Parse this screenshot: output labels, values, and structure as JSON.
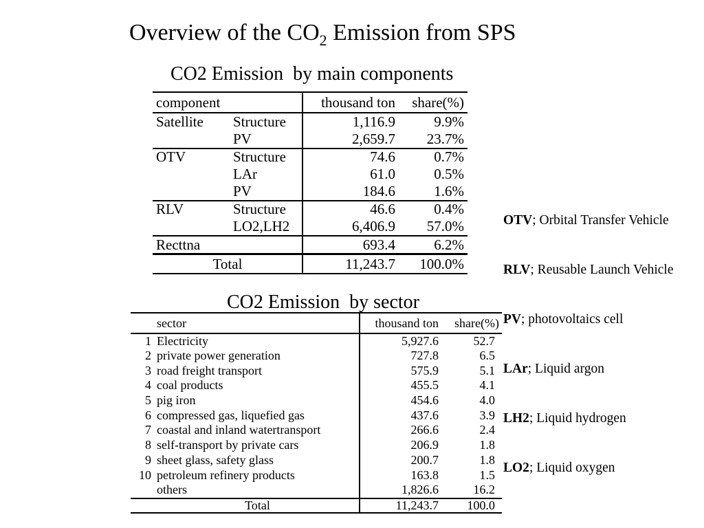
{
  "title": {
    "main": "Overview of the CO",
    "subscript": "2",
    "rest": " Emission from SPS"
  },
  "components_table": {
    "caption": "CO2 Emission  by main components",
    "header": {
      "component": "component",
      "amount": "thousand ton",
      "share": "share(%)"
    },
    "rows": [
      {
        "group": "Satellite",
        "item": "Structure",
        "amount": "1,116.9",
        "share": "9.9%"
      },
      {
        "item": "PV",
        "amount": "2,659.7",
        "share": "23.7%"
      },
      {
        "group": "OTV",
        "item": "Structure",
        "amount": "74.6",
        "share": "0.7%"
      },
      {
        "item": "LAr",
        "amount": "61.0",
        "share": "0.5%"
      },
      {
        "item": "PV",
        "amount": "184.6",
        "share": "1.6%"
      },
      {
        "group": "RLV",
        "item": "Structure",
        "amount": "46.6",
        "share": "0.4%"
      },
      {
        "item": "LO2,LH2",
        "amount": "6,406.9",
        "share": "57.0%"
      },
      {
        "group": "Recttna",
        "amount": "693.4",
        "share": "6.2%"
      }
    ],
    "total": {
      "label": "Total",
      "amount": "11,243.7",
      "share": "100.0%"
    }
  },
  "legend": [
    {
      "abbr": "OTV",
      "text": "; Orbital Transfer Vehicle"
    },
    {
      "abbr": "RLV",
      "text": "; Reusable Launch Vehicle"
    },
    {
      "abbr": "PV",
      "text": "; photovoltaics cell"
    },
    {
      "abbr": "LAr",
      "text": "; Liquid argon"
    },
    {
      "abbr": "LH2",
      "text": "; Liquid hydrogen"
    },
    {
      "abbr": "LO2",
      "text": "; Liquid oxygen"
    }
  ],
  "sector_table": {
    "caption": "CO2 Emission  by sector",
    "header": {
      "sector": "sector",
      "amount": "thousand ton",
      "share": "share(%)"
    },
    "rows": [
      {
        "rank": "1",
        "sector": "Electricity",
        "amount": "5,927.6",
        "share": "52.7"
      },
      {
        "rank": "2",
        "sector": "private power generation",
        "amount": "727.8",
        "share": "6.5"
      },
      {
        "rank": "3",
        "sector": "road freight transport",
        "amount": "575.9",
        "share": "5.1"
      },
      {
        "rank": "4",
        "sector": "coal products",
        "amount": "455.5",
        "share": "4.1"
      },
      {
        "rank": "5",
        "sector": "pig iron",
        "amount": "454.6",
        "share": "4.0"
      },
      {
        "rank": "6",
        "sector": "compressed gas, liquefied gas",
        "amount": "437.6",
        "share": "3.9"
      },
      {
        "rank": "7",
        "sector": "coastal and inland watertransport",
        "amount": "266.6",
        "share": "2.4"
      },
      {
        "rank": "8",
        "sector": "self-transport by private cars",
        "amount": "206.9",
        "share": "1.8"
      },
      {
        "rank": "9",
        "sector": "sheet glass, safety glass",
        "amount": "200.7",
        "share": "1.8"
      },
      {
        "rank": "10",
        "sector": "petroleum refinery products",
        "amount": "163.8",
        "share": "1.5"
      },
      {
        "sector": "others",
        "amount": "1,826.6",
        "share": "16.2"
      }
    ],
    "total": {
      "label": "Total",
      "amount": "11,243.7",
      "share": "100.0"
    }
  }
}
